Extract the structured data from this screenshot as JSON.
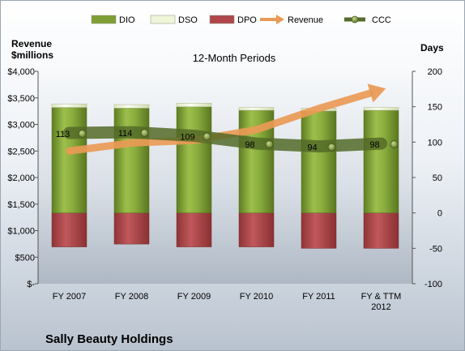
{
  "chart_data": {
    "type": "bar",
    "title": "12-Month Periods",
    "company": "Sally Beauty Holdings",
    "left_axis_label": [
      "Revenue",
      "$millions"
    ],
    "right_axis_label": "Days",
    "categories": [
      [
        "FY 2007"
      ],
      [
        "FY 2008"
      ],
      [
        "FY 2009"
      ],
      [
        "FY 2010"
      ],
      [
        "FY 2011"
      ],
      [
        "FY & TTM",
        "2012"
      ]
    ],
    "left_ylim": [
      0,
      4000
    ],
    "left_ticks": [
      "$-",
      "$500",
      "$1,000",
      "$1,500",
      "$2,000",
      "$2,500",
      "$3,000",
      "$3,500",
      "$4,000"
    ],
    "right_ylim": [
      -100,
      200
    ],
    "right_ticks": [
      "-100",
      "-50",
      "0",
      "50",
      "100",
      "150",
      "200"
    ],
    "legend": [
      {
        "name": "DIO",
        "color": "#7f9e35"
      },
      {
        "name": "DSO",
        "color": "#eef5d8"
      },
      {
        "name": "DPO",
        "color": "#b0474a"
      },
      {
        "name": "Revenue",
        "color": "#ea9a56"
      },
      {
        "name": "CCC",
        "color": "#556b2f"
      }
    ],
    "series": [
      {
        "name": "DIO",
        "axis": "right",
        "values": [
          149,
          148,
          150,
          145,
          144,
          145
        ]
      },
      {
        "name": "DSO",
        "axis": "right",
        "values": [
          5,
          5,
          5,
          4,
          4,
          4
        ]
      },
      {
        "name": "DPO",
        "axis": "right",
        "values": [
          -48,
          -44,
          -48,
          -48,
          -50,
          -50
        ]
      },
      {
        "name": "Revenue",
        "axis": "left",
        "values": [
          2500,
          2650,
          2700,
          2900,
          3300,
          3650
        ]
      },
      {
        "name": "CCC",
        "axis": "right",
        "values": [
          113,
          114,
          109,
          98,
          94,
          98
        ],
        "labels": [
          "113",
          "114",
          "109",
          "98",
          "94",
          "98"
        ]
      }
    ],
    "grid": false,
    "legend_position": "top"
  }
}
